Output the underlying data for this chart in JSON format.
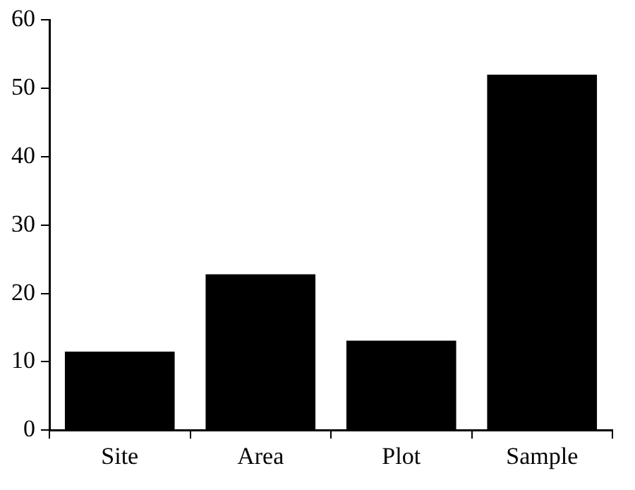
{
  "chart_data": {
    "type": "bar",
    "categories": [
      "Site",
      "Area",
      "Plot",
      "Sample"
    ],
    "values": [
      11.5,
      22.8,
      13.1,
      52
    ],
    "color": "#000000",
    "ylim": [
      0,
      60
    ],
    "yticks": [
      0,
      10,
      20,
      30,
      40,
      50,
      60
    ],
    "grid": false,
    "legend": false
  }
}
